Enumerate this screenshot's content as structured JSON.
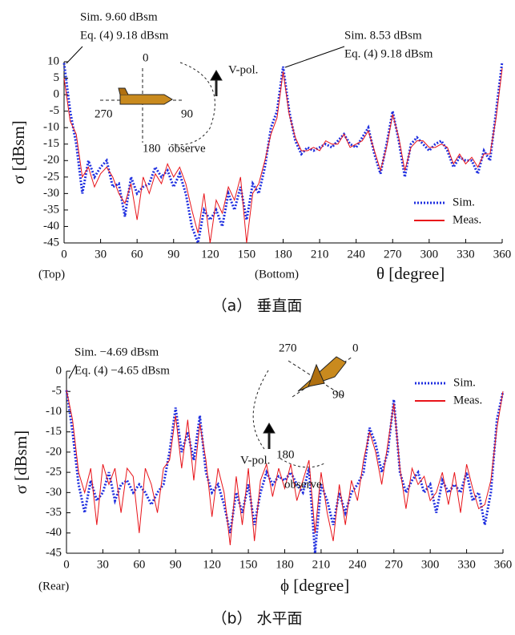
{
  "chart_data": [
    {
      "type": "line",
      "title": null,
      "ylabel": "σ [dBsm]",
      "xlabel": "θ [degree]",
      "caption": "（a） 垂直面",
      "x": [
        0,
        5,
        10,
        15,
        20,
        25,
        30,
        35,
        40,
        45,
        50,
        55,
        60,
        65,
        70,
        75,
        80,
        85,
        90,
        95,
        100,
        105,
        110,
        115,
        120,
        125,
        130,
        135,
        140,
        145,
        150,
        155,
        160,
        165,
        170,
        175,
        180,
        185,
        190,
        195,
        200,
        205,
        210,
        215,
        220,
        225,
        230,
        235,
        240,
        245,
        250,
        255,
        260,
        265,
        270,
        275,
        280,
        285,
        290,
        295,
        300,
        305,
        310,
        315,
        320,
        325,
        330,
        335,
        340,
        345,
        350,
        355,
        360
      ],
      "series": [
        {
          "name": "Sim.",
          "color": "#1f2fe0",
          "style": "dotted",
          "values": [
            9.6,
            -5,
            -15,
            -30,
            -20,
            -25,
            -22,
            -20,
            -28,
            -27,
            -37,
            -25,
            -30,
            -28,
            -27,
            -22,
            -25,
            -23,
            -28,
            -24,
            -30,
            -40,
            -45,
            -35,
            -38,
            -35,
            -40,
            -30,
            -35,
            -28,
            -38,
            -27,
            -30,
            -22,
            -10,
            -5,
            8.53,
            -5,
            -14,
            -18,
            -16,
            -17,
            -16,
            -15,
            -16,
            -14,
            -12,
            -15,
            -16,
            -13,
            -10,
            -18,
            -24,
            -15,
            -5,
            -14,
            -25,
            -15,
            -13,
            -15,
            -17,
            -15,
            -14,
            -17,
            -22,
            -19,
            -20,
            -20,
            -24,
            -17,
            -20,
            -5,
            10
          ]
        },
        {
          "name": "Meas.",
          "color": "#e8141a",
          "style": "solid",
          "values": [
            5,
            -8,
            -12,
            -25,
            -22,
            -28,
            -24,
            -22,
            -25,
            -30,
            -33,
            -27,
            -38,
            -25,
            -30,
            -24,
            -27,
            -21,
            -25,
            -22,
            -27,
            -35,
            -42,
            -30,
            -45,
            -32,
            -36,
            -28,
            -32,
            -25,
            -45,
            -30,
            -27,
            -20,
            -12,
            -7,
            7,
            -6,
            -13,
            -17,
            -17,
            -16,
            -17,
            -14,
            -15,
            -15,
            -12,
            -16,
            -15,
            -14,
            -11,
            -17,
            -23,
            -16,
            -6,
            -13,
            -23,
            -16,
            -14,
            -14,
            -16,
            -16,
            -15,
            -16,
            -21,
            -18,
            -21,
            -19,
            -22,
            -18,
            -18,
            -7,
            8
          ]
        }
      ],
      "xlim": [
        0,
        360
      ],
      "xticks": [
        0,
        30,
        60,
        90,
        120,
        150,
        180,
        210,
        240,
        270,
        300,
        330,
        360
      ],
      "ylim": [
        -45,
        10
      ],
      "yticks": [
        -45,
        -40,
        -35,
        -30,
        -25,
        -20,
        -15,
        -10,
        -5,
        0,
        5,
        10
      ],
      "legend": "lower right",
      "annotations": [
        "Sim. 9.60 dBsm",
        "Eq. (4) 9.18 dBsm",
        "Sim. 8.53 dBsm",
        "Eq. (4) 9.18 dBsm",
        "(Top)",
        "(Bottom)",
        "V-pol.",
        "observe",
        "0",
        "90",
        "180",
        "270"
      ]
    },
    {
      "type": "line",
      "title": null,
      "ylabel": "σ [dBsm]",
      "xlabel": "ϕ [degree]",
      "caption": "（b） 水平面",
      "x": [
        0,
        5,
        10,
        15,
        20,
        25,
        30,
        35,
        40,
        45,
        50,
        55,
        60,
        65,
        70,
        75,
        80,
        85,
        90,
        95,
        100,
        105,
        110,
        115,
        120,
        125,
        130,
        135,
        140,
        145,
        150,
        155,
        160,
        165,
        170,
        175,
        180,
        185,
        190,
        195,
        200,
        205,
        210,
        215,
        220,
        225,
        230,
        235,
        240,
        245,
        250,
        255,
        260,
        265,
        270,
        275,
        280,
        285,
        290,
        295,
        300,
        305,
        310,
        315,
        320,
        325,
        330,
        335,
        340,
        345,
        350,
        355,
        360
      ],
      "series": [
        {
          "name": "Sim.",
          "color": "#1f2fe0",
          "style": "dotted",
          "values": [
            -4.69,
            -15,
            -28,
            -35,
            -27,
            -32,
            -30,
            -25,
            -32,
            -28,
            -27,
            -30,
            -28,
            -30,
            -33,
            -30,
            -28,
            -20,
            -9,
            -20,
            -15,
            -22,
            -11,
            -25,
            -30,
            -28,
            -33,
            -40,
            -30,
            -35,
            -28,
            -38,
            -30,
            -25,
            -28,
            -26,
            -27,
            -25,
            -28,
            -30,
            -24,
            -45,
            -28,
            -32,
            -38,
            -30,
            -35,
            -30,
            -28,
            -25,
            -14,
            -18,
            -25,
            -20,
            -7,
            -25,
            -30,
            -27,
            -25,
            -30,
            -28,
            -35,
            -27,
            -30,
            -28,
            -30,
            -25,
            -32,
            -30,
            -38,
            -30,
            -12,
            -5
          ]
        },
        {
          "name": "Meas.",
          "color": "#e8141a",
          "style": "solid",
          "values": [
            -4.65,
            -12,
            -25,
            -30,
            -24,
            -38,
            -23,
            -28,
            -24,
            -35,
            -24,
            -26,
            -40,
            -24,
            -28,
            -35,
            -24,
            -22,
            -11,
            -24,
            -12,
            -27,
            -13,
            -22,
            -36,
            -24,
            -30,
            -43,
            -26,
            -38,
            -24,
            -42,
            -27,
            -23,
            -31,
            -24,
            -29,
            -23,
            -32,
            -27,
            -22,
            -40,
            -25,
            -35,
            -42,
            -28,
            -38,
            -27,
            -32,
            -22,
            -15,
            -20,
            -28,
            -18,
            -8,
            -24,
            -34,
            -24,
            -28,
            -26,
            -32,
            -30,
            -25,
            -33,
            -25,
            -35,
            -23,
            -29,
            -34,
            -33,
            -27,
            -14,
            -5
          ]
        }
      ],
      "xlim": [
        0,
        360
      ],
      "xticks": [
        0,
        30,
        60,
        90,
        120,
        150,
        180,
        210,
        240,
        270,
        300,
        330,
        360
      ],
      "ylim": [
        -45,
        0
      ],
      "yticks": [
        -45,
        -40,
        -35,
        -30,
        -25,
        -20,
        -15,
        -10,
        -5,
        0
      ],
      "legend": "upper right",
      "annotations": [
        "Sim. −4.69 dBsm",
        "Eq. (4) −4.65 dBsm",
        "(Rear)",
        "V-pol.",
        "observe",
        "270",
        "0",
        "90",
        "180"
      ]
    }
  ]
}
